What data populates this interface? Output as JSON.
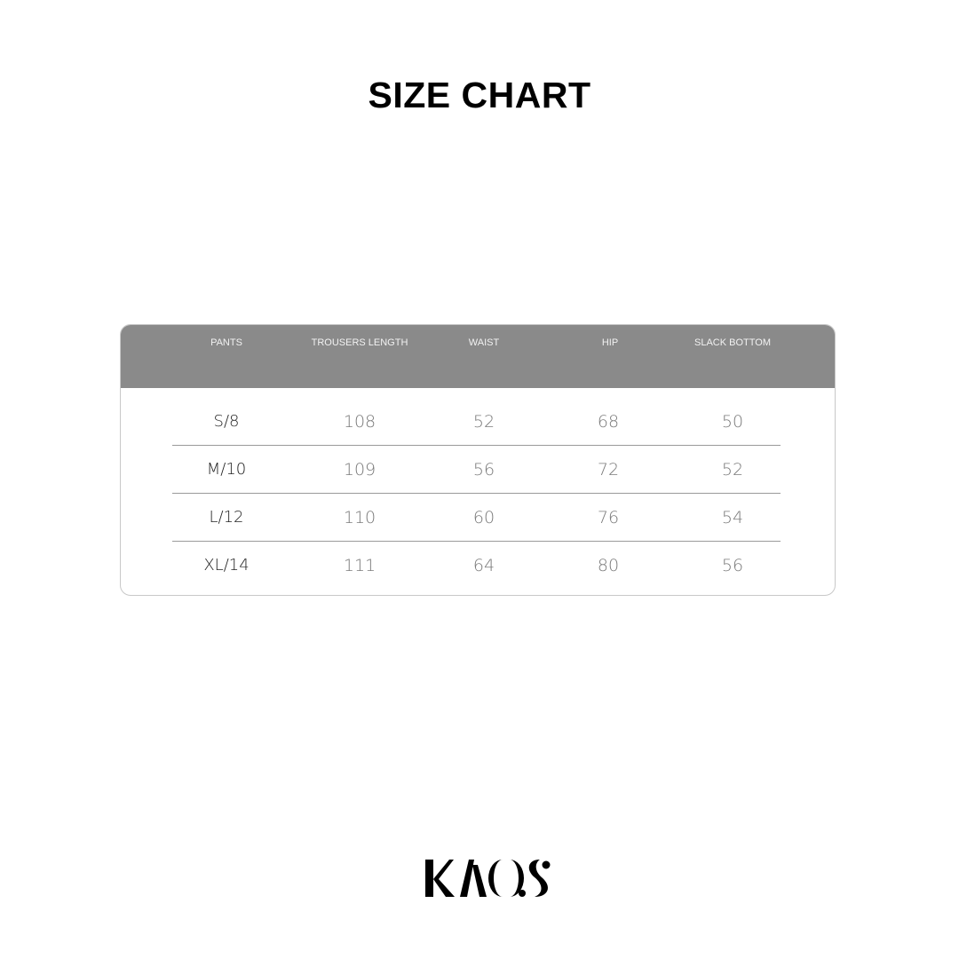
{
  "title": "SIZE CHART",
  "table": {
    "headers": [
      "PANTS",
      "TROUSERS LENGTH",
      "WAIST",
      "HIP",
      "SLACK BOTTOM"
    ],
    "rows": [
      [
        "S/8",
        "108",
        "52",
        "68",
        "50"
      ],
      [
        "M/10",
        "109",
        "56",
        "72",
        "52"
      ],
      [
        "L/12",
        "110",
        "60",
        "76",
        "54"
      ],
      [
        "XL/14",
        "111",
        "64",
        "80",
        "56"
      ]
    ],
    "header_color": "#8a8a8a"
  },
  "logo": {
    "text": "KAOS"
  }
}
